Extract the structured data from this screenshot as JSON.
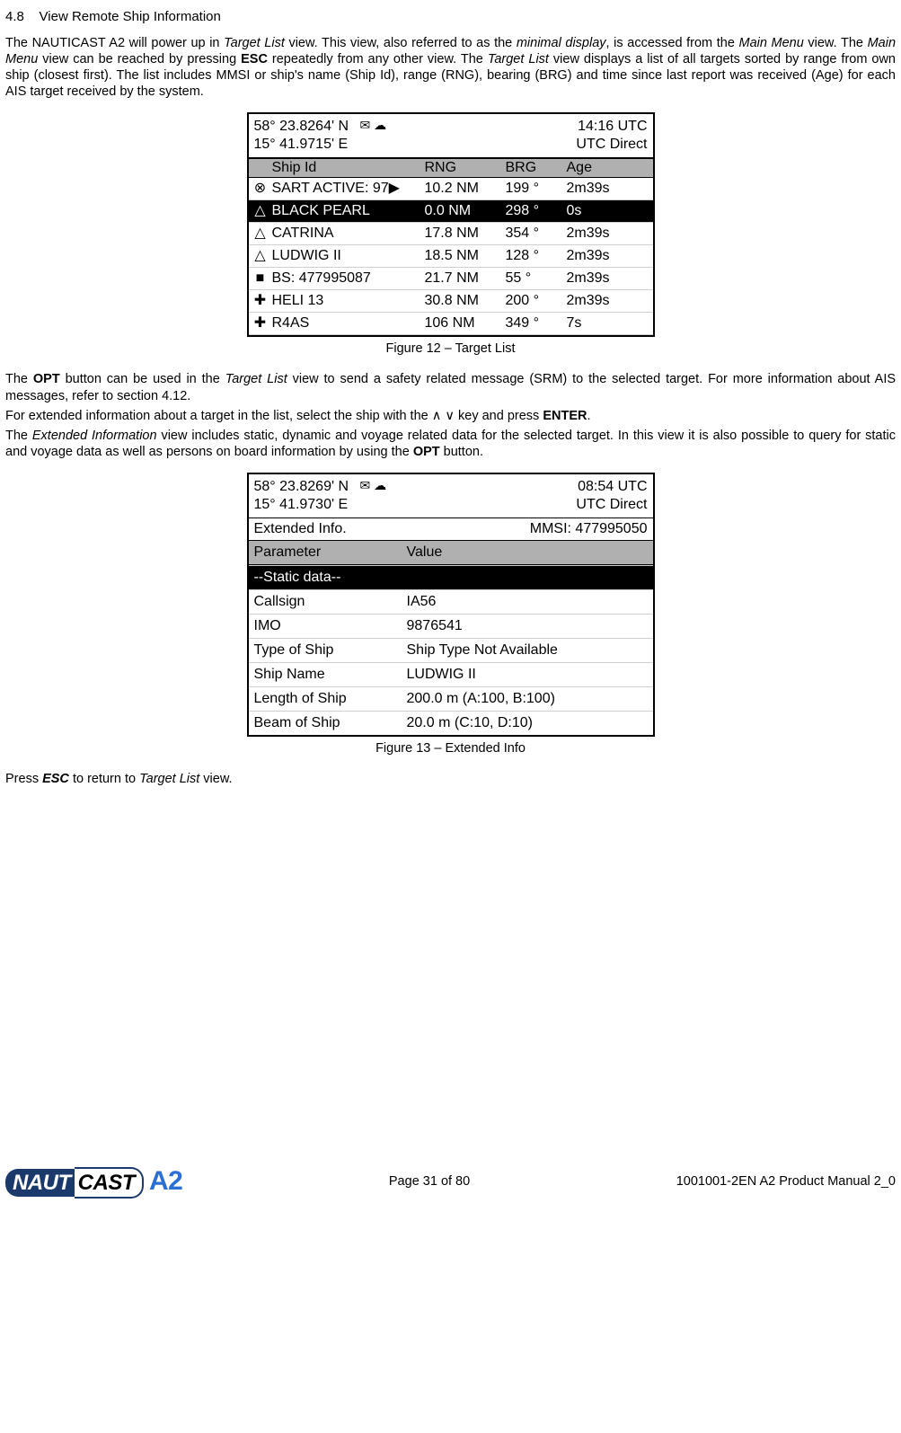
{
  "section": {
    "num": "4.8",
    "title": "View Remote Ship Information"
  },
  "p1_a": "The NAUTICAST A2 will power up in ",
  "p1_b": "Target List",
  "p1_c": " view. This view, also referred to as the ",
  "p1_d": "minimal display",
  "p1_e": ", is accessed from the ",
  "p1_f": "Main Menu",
  "p1_g": " view. The ",
  "p1_h": "Main Menu",
  "p1_i": " view can be reached by pressing ",
  "p1_j": "ESC",
  "p1_k": " repeatedly from any other view. The ",
  "p1_l": "Target List",
  "p1_m": " view displays a list of all targets sorted by range from own ship (closest first). The list includes MMSI or ship's name (Ship Id), range (RNG), bearing (BRG) and time since last report was received (Age) for each AIS target received by the system.",
  "fig12": {
    "lat": "58° 23.8264' N",
    "lon": "15° 41.9715' E",
    "time": "14:16 UTC",
    "src": "UTC Direct",
    "hdr": {
      "id": "Ship Id",
      "rng": "RNG",
      "brg": "BRG",
      "age": "Age"
    },
    "rows": [
      {
        "icon": "⊗",
        "id": "SART ACTIVE: 97▶",
        "rng": "10.2 NM",
        "brg": "199 °",
        "age": "2m39s",
        "sel": false
      },
      {
        "icon": "△",
        "id": "BLACK PEARL",
        "rng": "0.0 NM",
        "brg": "298 °",
        "age": "0s",
        "sel": true
      },
      {
        "icon": "△",
        "id": "CATRINA",
        "rng": "17.8 NM",
        "brg": "354 °",
        "age": "2m39s",
        "sel": false
      },
      {
        "icon": "△",
        "id": "LUDWIG II",
        "rng": "18.5 NM",
        "brg": "128 °",
        "age": "2m39s",
        "sel": false
      },
      {
        "icon": "■",
        "id": "BS: 477995087",
        "rng": "21.7 NM",
        "brg": "55 °",
        "age": "2m39s",
        "sel": false
      },
      {
        "icon": "✚",
        "id": "HELI 13",
        "rng": "30.8 NM",
        "brg": "200 °",
        "age": "2m39s",
        "sel": false
      },
      {
        "icon": "✚",
        "id": "R4AS",
        "rng": "106 NM",
        "brg": "349 °",
        "age": "7s",
        "sel": false
      }
    ],
    "caption": "Figure 12 – Target List"
  },
  "p2_a": "The ",
  "p2_b": "OPT",
  "p2_c": " button can be used in the ",
  "p2_d": "Target List",
  "p2_e": " view to send a safety related message (SRM) to the selected target. For more information about AIS messages, refer to section 4.12.",
  "p3_a": "For extended information about a target in the list, select the ship with the ∧ ∨ key and press ",
  "p3_b": "ENTER",
  "p3_c": ".",
  "p4_a": "The ",
  "p4_b": "Extended Information",
  "p4_c": " view includes static, dynamic and voyage related data for the selected target. In this view it is also possible to query for static and voyage data as well as persons on board information by using the ",
  "p4_d": "OPT",
  "p4_e": " button.",
  "fig13": {
    "lat": "58° 23.8269' N",
    "lon": "15° 41.9730' E",
    "time": "08:54 UTC",
    "src": "UTC Direct",
    "title": "Extended Info.",
    "mmsi": "MMSI: 477995050",
    "hdr_param": "Parameter",
    "hdr_val": "Value",
    "section": "--Static data--",
    "rows": [
      {
        "p": "Callsign",
        "v": "IA56"
      },
      {
        "p": "IMO",
        "v": "9876541"
      },
      {
        "p": "Type of Ship",
        "v": "Ship Type Not Available"
      },
      {
        "p": "Ship Name",
        "v": "LUDWIG II"
      },
      {
        "p": "Length of Ship",
        "v": "200.0 m (A:100, B:100)"
      },
      {
        "p": "Beam of Ship",
        "v": "20.0 m (C:10, D:10)"
      }
    ],
    "caption": "Figure 13 – Extended Info"
  },
  "p5_a": "Press ",
  "p5_b": "ESC",
  "p5_c": " to return to ",
  "p5_d": "Target List",
  "p5_e": " view.",
  "footer": {
    "page": "Page 31 of 80",
    "doc": "1001001-2EN A2 Product Manual 2_0"
  }
}
